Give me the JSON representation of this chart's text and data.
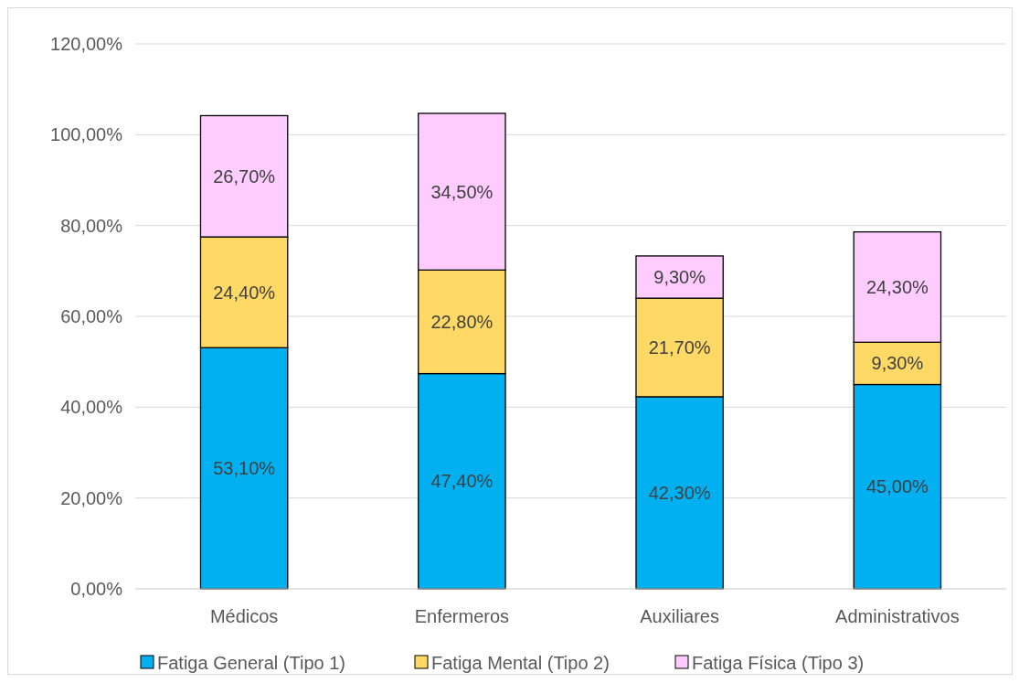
{
  "chart_data": {
    "type": "bar",
    "stacked": true,
    "categories": [
      "Médicos",
      "Enfermeros",
      "Auxiliares",
      "Administrativos"
    ],
    "series": [
      {
        "name": "Fatiga General (Tipo 1)",
        "color": "#00b0f0",
        "values": [
          53.1,
          47.4,
          42.3,
          45.0
        ],
        "value_labels": [
          "53,10%",
          "47,40%",
          "42,30%",
          "45,00%"
        ]
      },
      {
        "name": "Fatiga Mental (Tipo 2)",
        "color": "#ffd966",
        "values": [
          24.4,
          22.8,
          21.7,
          9.3
        ],
        "value_labels": [
          "24,40%",
          "22,80%",
          "21,70%",
          "9,30%"
        ]
      },
      {
        "name": "Fatiga Física (Tipo 3)",
        "color": "#ffccff",
        "values": [
          26.7,
          34.5,
          9.3,
          24.3
        ],
        "value_labels": [
          "26,70%",
          "34,50%",
          "9,30%",
          "24,30%"
        ]
      }
    ],
    "ylim": [
      0,
      120
    ],
    "yticks": [
      {
        "value": 0,
        "label": "0,00%"
      },
      {
        "value": 20,
        "label": "20,00%"
      },
      {
        "value": 40,
        "label": "40,00%"
      },
      {
        "value": 60,
        "label": "60,00%"
      },
      {
        "value": 80,
        "label": "80,00%"
      },
      {
        "value": 100,
        "label": "100,00%"
      },
      {
        "value": 120,
        "label": "120,00%"
      }
    ],
    "grid": "y",
    "legend": "bottom"
  }
}
